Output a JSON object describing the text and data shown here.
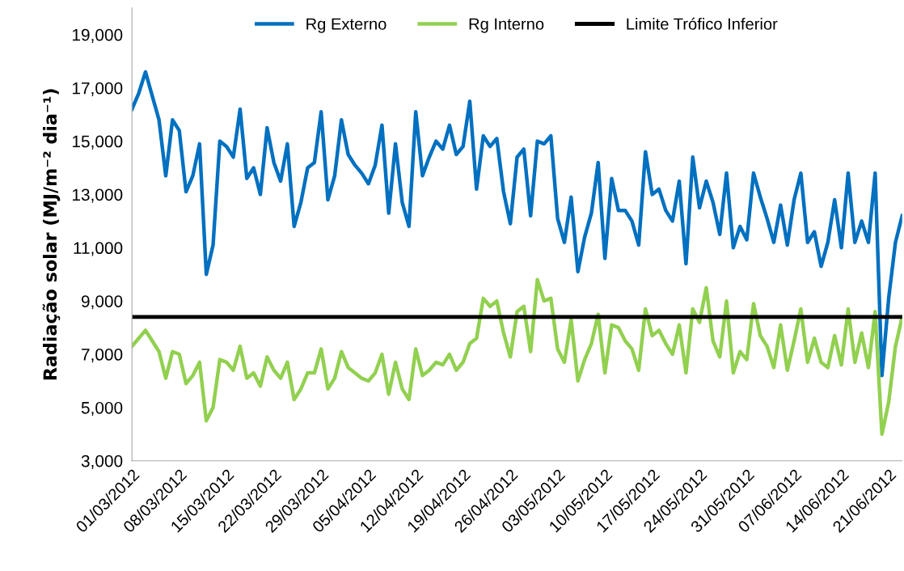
{
  "chart_data": {
    "type": "line",
    "ylabel": "Radiação solar (MJ/m⁻² dia⁻¹)",
    "x": [
      "2012-03-01",
      "2012-03-02",
      "2012-03-03",
      "2012-03-04",
      "2012-03-05",
      "2012-03-06",
      "2012-03-07",
      "2012-03-08",
      "2012-03-09",
      "2012-03-10",
      "2012-03-11",
      "2012-03-12",
      "2012-03-13",
      "2012-03-14",
      "2012-03-15",
      "2012-03-16",
      "2012-03-17",
      "2012-03-18",
      "2012-03-19",
      "2012-03-20",
      "2012-03-21",
      "2012-03-22",
      "2012-03-23",
      "2012-03-24",
      "2012-03-25",
      "2012-03-26",
      "2012-03-27",
      "2012-03-28",
      "2012-03-29",
      "2012-03-30",
      "2012-03-31",
      "2012-04-01",
      "2012-04-02",
      "2012-04-03",
      "2012-04-04",
      "2012-04-05",
      "2012-04-06",
      "2012-04-07",
      "2012-04-08",
      "2012-04-09",
      "2012-04-10",
      "2012-04-11",
      "2012-04-12",
      "2012-04-13",
      "2012-04-14",
      "2012-04-15",
      "2012-04-16",
      "2012-04-17",
      "2012-04-18",
      "2012-04-19",
      "2012-04-20",
      "2012-04-21",
      "2012-04-22",
      "2012-04-23",
      "2012-04-24",
      "2012-04-25",
      "2012-04-26",
      "2012-04-27",
      "2012-04-28",
      "2012-04-29",
      "2012-04-30",
      "2012-05-01",
      "2012-05-02",
      "2012-05-03",
      "2012-05-04",
      "2012-05-05",
      "2012-05-06",
      "2012-05-07",
      "2012-05-08",
      "2012-05-09",
      "2012-05-10",
      "2012-05-11",
      "2012-05-12",
      "2012-05-13",
      "2012-05-14",
      "2012-05-15",
      "2012-05-16",
      "2012-05-17",
      "2012-05-18",
      "2012-05-19",
      "2012-05-20",
      "2012-05-21",
      "2012-05-22",
      "2012-05-23",
      "2012-05-24",
      "2012-05-25",
      "2012-05-26",
      "2012-05-27",
      "2012-05-28",
      "2012-05-29",
      "2012-05-30",
      "2012-05-31",
      "2012-06-01",
      "2012-06-02",
      "2012-06-03",
      "2012-06-04",
      "2012-06-05",
      "2012-06-06",
      "2012-06-07",
      "2012-06-08",
      "2012-06-09",
      "2012-06-10",
      "2012-06-11",
      "2012-06-12",
      "2012-06-13",
      "2012-06-14",
      "2012-06-15",
      "2012-06-16",
      "2012-06-17",
      "2012-06-18",
      "2012-06-19",
      "2012-06-20",
      "2012-06-21",
      "2012-06-22",
      "2012-06-23"
    ],
    "series": [
      {
        "name": "Rg Externo",
        "color": "#0070c0",
        "values": [
          16200,
          16800,
          17600,
          16700,
          15800,
          13700,
          15800,
          15400,
          13100,
          13700,
          14900,
          10000,
          11100,
          15000,
          14800,
          14400,
          16200,
          13600,
          14000,
          13000,
          15500,
          14200,
          13500,
          14900,
          11800,
          12700,
          14000,
          14200,
          16100,
          12800,
          13700,
          15800,
          14500,
          14100,
          13800,
          13400,
          14100,
          15600,
          12300,
          14900,
          12700,
          11800,
          16100,
          13700,
          14400,
          15000,
          14700,
          15600,
          14500,
          14800,
          16500,
          13200,
          15200,
          14800,
          15100,
          13100,
          11900,
          14400,
          14700,
          12200,
          15000,
          14900,
          15200,
          12100,
          11200,
          12900,
          10100,
          11400,
          12300,
          14200,
          10600,
          13600,
          12400,
          12400,
          12000,
          11100,
          14600,
          13000,
          13200,
          12400,
          12000,
          13500,
          10400,
          14400,
          12500,
          13500,
          12700,
          11500,
          13800,
          11000,
          11800,
          11300,
          13800,
          12900,
          12100,
          11200,
          12600,
          11100,
          12800,
          13800,
          11200,
          11600,
          10300,
          11200,
          12800,
          11000,
          13800,
          11200,
          12000,
          11200,
          13800,
          6200,
          9100,
          11200,
          12200
        ]
      },
      {
        "name": "Rg Interno",
        "color": "#92d050",
        "values": [
          7300,
          7600,
          7900,
          7500,
          7100,
          6100,
          7100,
          7000,
          5900,
          6200,
          6700,
          4500,
          5000,
          6800,
          6700,
          6400,
          7300,
          6100,
          6300,
          5800,
          6900,
          6400,
          6100,
          6700,
          5300,
          5700,
          6300,
          6300,
          7200,
          5700,
          6100,
          7100,
          6500,
          6300,
          6100,
          6000,
          6300,
          7000,
          5500,
          6700,
          5700,
          5300,
          7200,
          6200,
          6400,
          6700,
          6600,
          7000,
          6400,
          6700,
          7400,
          7600,
          9100,
          8800,
          9000,
          7800,
          6900,
          8600,
          8800,
          7100,
          9800,
          9000,
          9100,
          7200,
          6700,
          8300,
          6000,
          6800,
          7400,
          8500,
          6300,
          8100,
          8000,
          7500,
          7200,
          6400,
          8700,
          7700,
          7900,
          7400,
          7000,
          8100,
          6300,
          8700,
          8200,
          9500,
          7500,
          6900,
          9000,
          6300,
          7100,
          6800,
          8900,
          7700,
          7300,
          6500,
          8100,
          6400,
          7500,
          8700,
          6700,
          7600,
          6700,
          6500,
          7700,
          6600,
          8700,
          6700,
          7800,
          6500,
          8600,
          4000,
          5200,
          7300,
          8400
        ]
      }
    ],
    "ref_lines": [
      {
        "axis": "y",
        "value": 8400,
        "label": "Limite Trófico Inferior",
        "color": "#000000",
        "line_style": "solid"
      }
    ],
    "xlim": [
      "2012-03-01",
      "2012-06-23"
    ],
    "xticks": [
      {
        "value": "2012-03-01",
        "label": "01/03/2012"
      },
      {
        "value": "2012-03-08",
        "label": "08/03/2012"
      },
      {
        "value": "2012-03-15",
        "label": "15/03/2012"
      },
      {
        "value": "2012-03-22",
        "label": "22/03/2012"
      },
      {
        "value": "2012-03-29",
        "label": "29/03/2012"
      },
      {
        "value": "2012-04-05",
        "label": "05/04/2012"
      },
      {
        "value": "2012-04-12",
        "label": "12/04/2012"
      },
      {
        "value": "2012-04-19",
        "label": "19/04/2012"
      },
      {
        "value": "2012-04-26",
        "label": "26/04/2012"
      },
      {
        "value": "2012-05-03",
        "label": "03/05/2012"
      },
      {
        "value": "2012-05-10",
        "label": "10/05/2012"
      },
      {
        "value": "2012-05-17",
        "label": "17/05/2012"
      },
      {
        "value": "2012-05-24",
        "label": "24/05/2012"
      },
      {
        "value": "2012-05-31",
        "label": "31/05/2012"
      },
      {
        "value": "2012-06-07",
        "label": "07/06/2012"
      },
      {
        "value": "2012-06-14",
        "label": "14/06/2012"
      },
      {
        "value": "2012-06-21",
        "label": "21/06/2012"
      }
    ],
    "ylim": [
      3000,
      20000
    ],
    "yticks": [
      {
        "value": 3000,
        "label": "3,000"
      },
      {
        "value": 5000,
        "label": "5,000"
      },
      {
        "value": 7000,
        "label": "7,000"
      },
      {
        "value": 9000,
        "label": "9,000"
      },
      {
        "value": 11000,
        "label": "11,000"
      },
      {
        "value": 13000,
        "label": "13,000"
      },
      {
        "value": 15000,
        "label": "15,000"
      },
      {
        "value": 17000,
        "label": "17,000"
      },
      {
        "value": 19000,
        "label": "19,000"
      }
    ],
    "grid": false,
    "legend": "top",
    "marker": "none",
    "line_style": "solid"
  }
}
